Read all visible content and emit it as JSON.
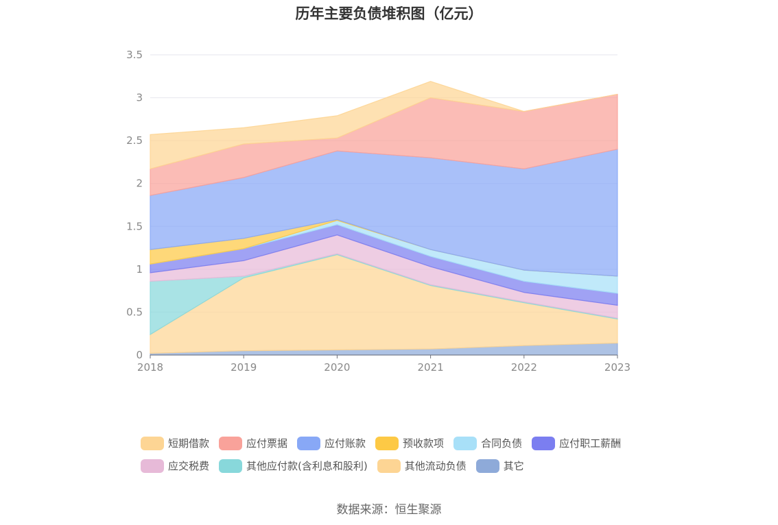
{
  "chart_data": {
    "type": "area",
    "stacked": true,
    "title": "历年主要负债堆积图（亿元）",
    "x": [
      "2018",
      "2019",
      "2020",
      "2021",
      "2022",
      "2023"
    ],
    "ylim": [
      0,
      3.5
    ],
    "yticks": [
      "0",
      "0.5",
      "1",
      "1.5",
      "2",
      "2.5",
      "3",
      "3.5"
    ],
    "grid": true,
    "legend_position": "bottom",
    "series": [
      {
        "name": "其它",
        "color": "#8eaad9",
        "values": [
          0.02,
          0.05,
          0.06,
          0.07,
          0.11,
          0.14
        ]
      },
      {
        "name": "其他流动负债",
        "color": "#fdd594",
        "values": [
          0.22,
          0.85,
          1.11,
          0.74,
          0.5,
          0.28
        ]
      },
      {
        "name": "其他应付款(含利息和股利)",
        "color": "#88d8db",
        "values": [
          0.62,
          0.02,
          0.01,
          0.01,
          0.01,
          0.01
        ]
      },
      {
        "name": "应交税费",
        "color": "#e7bad8",
        "values": [
          0.1,
          0.18,
          0.22,
          0.21,
          0.11,
          0.15
        ]
      },
      {
        "name": "应付职工薪酬",
        "color": "#7b7ef0",
        "values": [
          0.1,
          0.14,
          0.12,
          0.12,
          0.13,
          0.14
        ]
      },
      {
        "name": "合同负债",
        "color": "#a8e0f8",
        "values": [
          0.0,
          0.0,
          0.05,
          0.08,
          0.13,
          0.2
        ]
      },
      {
        "name": "预收款项",
        "color": "#fdc945",
        "values": [
          0.17,
          0.12,
          0.01,
          0.0,
          0.0,
          0.0
        ]
      },
      {
        "name": "应付账款",
        "color": "#88a8f6",
        "values": [
          0.63,
          0.71,
          0.8,
          1.07,
          1.18,
          1.48
        ]
      },
      {
        "name": "应付票据",
        "color": "#f9a29a",
        "values": [
          0.31,
          0.39,
          0.15,
          0.7,
          0.67,
          0.64
        ]
      },
      {
        "name": "短期借款",
        "color": "#fdd594",
        "values": [
          0.4,
          0.19,
          0.26,
          0.19,
          0.0,
          0.0
        ]
      }
    ]
  },
  "legend": {
    "rows": [
      [
        {
          "label": "短期借款",
          "color": "#fdd594"
        },
        {
          "label": "应付票据",
          "color": "#f9a29a"
        },
        {
          "label": "应付账款",
          "color": "#88a8f6"
        },
        {
          "label": "预收款项",
          "color": "#fdc945"
        },
        {
          "label": "合同负债",
          "color": "#a8e0f8"
        },
        {
          "label": "应付职工薪酬",
          "color": "#7b7ef0"
        }
      ],
      [
        {
          "label": "应交税费",
          "color": "#e7bad8"
        },
        {
          "label": "其他应付款(含利息和股利)",
          "color": "#88d8db"
        },
        {
          "label": "其他流动负债",
          "color": "#fdd594"
        },
        {
          "label": "其它",
          "color": "#8eaad9"
        }
      ]
    ]
  },
  "footer": {
    "source": "数据来源：恒生聚源"
  }
}
